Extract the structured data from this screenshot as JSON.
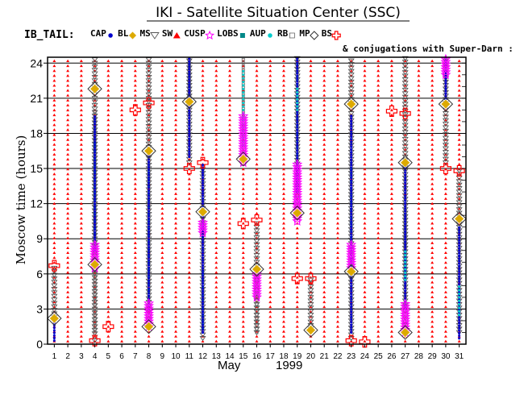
{
  "chart_data": {
    "type": "scatter",
    "title": "IKI - Satellite Situation Center (SSC)",
    "legend_prefix": "IB_TAIL:",
    "legend_note": "& conjugations with Super-Darn :",
    "ylabel": "Moscow time (hours)",
    "xlabel_month": "May",
    "xlabel_year": "1999",
    "xlim": [
      1,
      31
    ],
    "ylim": [
      0,
      24.5
    ],
    "yticks": [
      0,
      3,
      6,
      9,
      12,
      15,
      18,
      21,
      24
    ],
    "xticks": [
      1,
      2,
      3,
      4,
      5,
      6,
      7,
      8,
      9,
      10,
      11,
      12,
      13,
      14,
      15,
      16,
      17,
      18,
      19,
      20,
      21,
      22,
      23,
      24,
      25,
      26,
      27,
      28,
      29,
      30,
      31
    ],
    "grid": true,
    "legend_position": "top",
    "series": [
      {
        "name": "CAP",
        "marker": "dot",
        "color": "#0000cc"
      },
      {
        "name": "BL",
        "marker": "diamond",
        "color": "#ddaa00"
      },
      {
        "name": "MS",
        "marker": "triangle-down",
        "color": "#555555"
      },
      {
        "name": "SW",
        "marker": "triangle-up",
        "color": "#ff0000"
      },
      {
        "name": "CUSP",
        "marker": "star",
        "color": "#ff00ff"
      },
      {
        "name": "LOBS",
        "marker": "square",
        "color": "#008888"
      },
      {
        "name": "AUP",
        "marker": "dot",
        "color": "#00cccc"
      },
      {
        "name": "RB",
        "marker": "square-open",
        "color": "#666666"
      },
      {
        "name": "MP",
        "marker": "diamond-open",
        "color": "#333333"
      },
      {
        "name": "BS",
        "marker": "cross",
        "color": "#ff0000"
      }
    ],
    "sw_days": [
      1,
      2,
      3,
      4,
      5,
      6,
      7,
      8,
      9,
      10,
      11,
      12,
      13,
      14,
      15,
      16,
      17,
      18,
      19,
      20,
      21,
      22,
      23,
      24,
      25,
      26,
      27,
      28,
      29,
      30,
      31
    ],
    "regions": [
      {
        "series": "MS",
        "day": 4,
        "from": 0.3,
        "to": 24.5
      },
      {
        "series": "MS",
        "day": 8,
        "from": 1.5,
        "to": 24.5
      },
      {
        "series": "MS",
        "day": 11,
        "from": 15.5,
        "to": 24.5
      },
      {
        "series": "MS",
        "day": 12,
        "from": 0.5,
        "to": 15.5
      },
      {
        "series": "MS",
        "day": 16,
        "from": 1.0,
        "to": 10.5
      },
      {
        "series": "MS",
        "day": 19,
        "from": 11.5,
        "to": 24.5
      },
      {
        "series": "MS",
        "day": 20,
        "from": 1.0,
        "to": 5.5
      },
      {
        "series": "MS",
        "day": 23,
        "from": 0.5,
        "to": 24.5
      },
      {
        "series": "MS",
        "day": 27,
        "from": 1.0,
        "to": 24.5
      },
      {
        "series": "MS",
        "day": 30,
        "from": 15.5,
        "to": 24.5
      },
      {
        "series": "MS",
        "day": 31,
        "from": 1.0,
        "to": 15.0
      },
      {
        "series": "MS",
        "day": 1,
        "from": 2.0,
        "to": 6.5
      },
      {
        "series": "CAP",
        "day": 11,
        "from": 16.0,
        "to": 24.5
      },
      {
        "series": "CAP",
        "day": 12,
        "from": 1.0,
        "to": 15.5
      },
      {
        "series": "CAP",
        "day": 19,
        "from": 13.0,
        "to": 24.5
      },
      {
        "series": "CAP",
        "day": 23,
        "from": 1.0,
        "to": 19.5
      },
      {
        "series": "CAP",
        "day": 27,
        "from": 3.0,
        "to": 15.5
      },
      {
        "series": "CAP",
        "day": 30,
        "from": 20.5,
        "to": 24.5
      },
      {
        "series": "CAP",
        "day": 31,
        "from": 0.5,
        "to": 10.0
      },
      {
        "series": "CAP",
        "day": 1,
        "from": 0.3,
        "to": 2.5
      },
      {
        "series": "CAP",
        "day": 4,
        "from": 8.0,
        "to": 19.5
      },
      {
        "series": "CAP",
        "day": 8,
        "from": 3.0,
        "to": 16.5
      },
      {
        "series": "LOBS",
        "day": 4,
        "from": 9.5,
        "to": 17.5
      },
      {
        "series": "LOBS",
        "day": 8,
        "from": 4.0,
        "to": 15.0
      },
      {
        "series": "LOBS",
        "day": 12,
        "from": 1.0,
        "to": 6.5
      },
      {
        "series": "LOBS",
        "day": 19,
        "from": 15.5,
        "to": 24.0
      },
      {
        "series": "LOBS",
        "day": 23,
        "from": 9.0,
        "to": 15.5
      },
      {
        "series": "AUP",
        "day": 15,
        "from": 17.0,
        "to": 23.5
      },
      {
        "series": "AUP",
        "day": 19,
        "from": 20.0,
        "to": 22.0
      },
      {
        "series": "AUP",
        "day": 27,
        "from": 5.5,
        "to": 8.0
      },
      {
        "series": "AUP",
        "day": 31,
        "from": 2.5,
        "to": 5.0
      },
      {
        "series": "RB",
        "day": 4,
        "from": 1.0,
        "to": 20.0
      },
      {
        "series": "RB",
        "day": 11,
        "from": 21.0,
        "to": 24.5
      },
      {
        "series": "RB",
        "day": 15,
        "from": 16.5,
        "to": 24.5
      },
      {
        "series": "RB",
        "day": 16,
        "from": 1.0,
        "to": 6.5
      },
      {
        "series": "RB",
        "day": 27,
        "from": 6.0,
        "to": 11.5
      },
      {
        "series": "CUSP",
        "day": 4,
        "from": 6.5,
        "to": 8.5
      },
      {
        "series": "CUSP",
        "day": 8,
        "from": 1.5,
        "to": 3.5
      },
      {
        "series": "CUSP",
        "day": 12,
        "from": 9.5,
        "to": 10.5
      },
      {
        "series": "CUSP",
        "day": 15,
        "from": 15.5,
        "to": 19.5
      },
      {
        "series": "CUSP",
        "day": 16,
        "from": 4.0,
        "to": 6.0
      },
      {
        "series": "CUSP",
        "day": 19,
        "from": 10.5,
        "to": 15.5
      },
      {
        "series": "CUSP",
        "day": 23,
        "from": 6.5,
        "to": 8.5
      },
      {
        "series": "CUSP",
        "day": 27,
        "from": 1.0,
        "to": 3.5
      },
      {
        "series": "CUSP",
        "day": 30,
        "from": 23.0,
        "to": 24.5
      }
    ],
    "points": [
      {
        "series": "BS",
        "day": 1,
        "y": 6.7
      },
      {
        "series": "BS",
        "day": 4,
        "y": 0.3
      },
      {
        "series": "BS",
        "day": 5,
        "y": 1.5
      },
      {
        "series": "BS",
        "day": 7,
        "y": 20.0
      },
      {
        "series": "BS",
        "day": 8,
        "y": 20.6
      },
      {
        "series": "BS",
        "day": 11,
        "y": 15.0
      },
      {
        "series": "BS",
        "day": 12,
        "y": 15.5
      },
      {
        "series": "BS",
        "day": 15,
        "y": 10.3
      },
      {
        "series": "BS",
        "day": 16,
        "y": 10.6
      },
      {
        "series": "BS",
        "day": 19,
        "y": 5.6
      },
      {
        "series": "BS",
        "day": 20,
        "y": 5.6
      },
      {
        "series": "BS",
        "day": 23,
        "y": 0.3
      },
      {
        "series": "BS",
        "day": 24,
        "y": 0.2
      },
      {
        "series": "BS",
        "day": 26,
        "y": 19.9
      },
      {
        "series": "BS",
        "day": 27,
        "y": 19.7
      },
      {
        "series": "BS",
        "day": 30,
        "y": 15.0
      },
      {
        "series": "BS",
        "day": 31,
        "y": 14.8
      },
      {
        "series": "MP",
        "day": 1,
        "y": 2.2
      },
      {
        "series": "MP",
        "day": 4,
        "y": 21.8
      },
      {
        "series": "MP",
        "day": 4,
        "y": 6.8
      },
      {
        "series": "MP",
        "day": 8,
        "y": 16.5
      },
      {
        "series": "MP",
        "day": 8,
        "y": 1.5
      },
      {
        "series": "MP",
        "day": 11,
        "y": 20.7
      },
      {
        "series": "MP",
        "day": 12,
        "y": 11.3
      },
      {
        "series": "MP",
        "day": 15,
        "y": 15.8
      },
      {
        "series": "MP",
        "day": 16,
        "y": 6.4
      },
      {
        "series": "MP",
        "day": 19,
        "y": 11.2
      },
      {
        "series": "MP",
        "day": 20,
        "y": 1.2
      },
      {
        "series": "MP",
        "day": 23,
        "y": 20.5
      },
      {
        "series": "MP",
        "day": 23,
        "y": 6.2
      },
      {
        "series": "MP",
        "day": 27,
        "y": 15.5
      },
      {
        "series": "MP",
        "day": 27,
        "y": 1.0
      },
      {
        "series": "MP",
        "day": 30,
        "y": 20.5
      },
      {
        "series": "MP",
        "day": 31,
        "y": 10.7
      }
    ]
  }
}
